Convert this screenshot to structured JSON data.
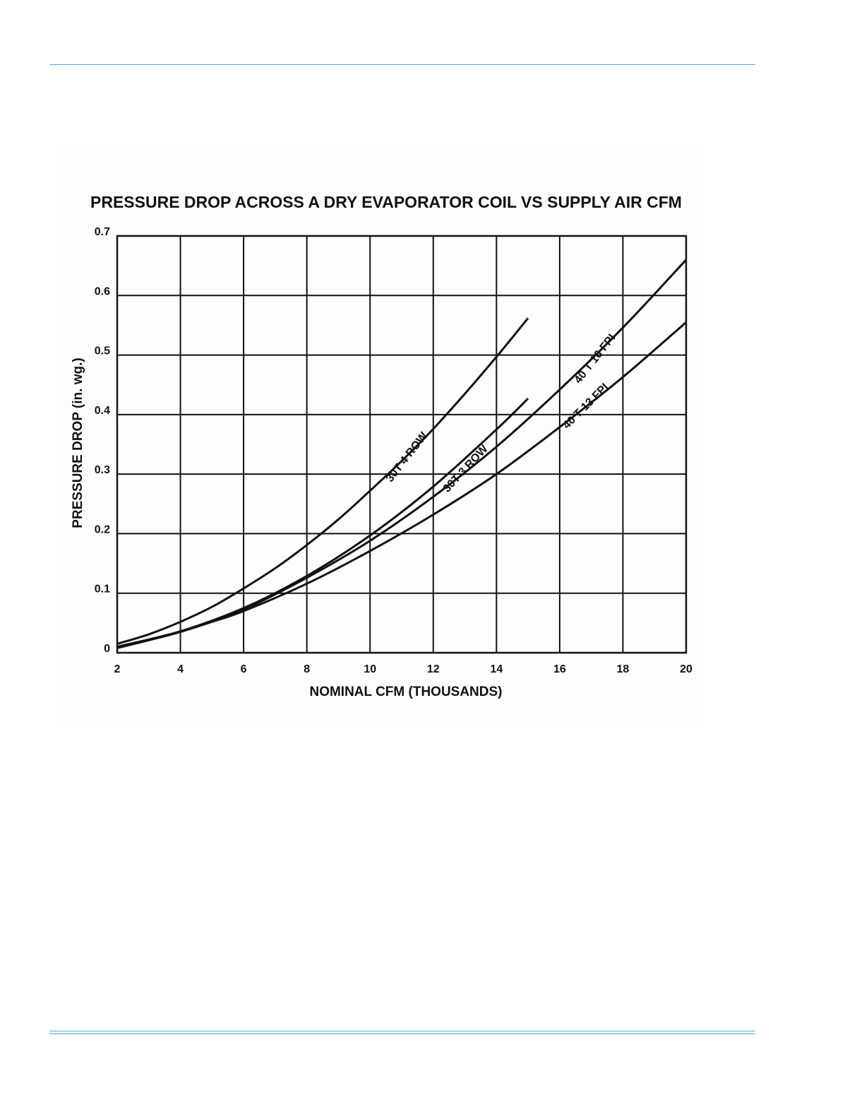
{
  "chart_data": {
    "type": "line",
    "title": "PRESSURE DROP ACROSS A DRY EVAPORATOR COIL VS SUPPLY AIR CFM",
    "xlabel": "NOMINAL CFM (THOUSANDS)",
    "ylabel": "PRESSURE DROP (in. wg.)",
    "xlim": [
      2,
      20
    ],
    "ylim": [
      0,
      0.7
    ],
    "x_ticks": [
      "2",
      "4",
      "6",
      "8",
      "10",
      "12",
      "14",
      "16",
      "18",
      "20"
    ],
    "y_ticks": [
      "0",
      "0.1",
      "0.2",
      "0.3",
      "0.4",
      "0.5",
      "0.6",
      "0.7"
    ],
    "grid": true,
    "series": [
      {
        "name": "30T 4 ROW",
        "x": [
          2,
          3,
          4,
          5,
          6,
          7,
          8,
          9,
          10,
          11,
          12,
          13,
          14,
          15
        ],
        "values": [
          0.015,
          0.031,
          0.052,
          0.077,
          0.108,
          0.142,
          0.181,
          0.224,
          0.272,
          0.322,
          0.376,
          0.435,
          0.497,
          0.562
        ]
      },
      {
        "name": "30T 3 ROW",
        "x": [
          2,
          4,
          6,
          8,
          10,
          12,
          14,
          15
        ],
        "values": [
          0.01,
          0.036,
          0.075,
          0.129,
          0.197,
          0.279,
          0.375,
          0.427
        ]
      },
      {
        "name": "40 T 16 FPI",
        "x": [
          2,
          4,
          6,
          8,
          10,
          12,
          14,
          16,
          18,
          20
        ],
        "values": [
          0.01,
          0.036,
          0.073,
          0.126,
          0.188,
          0.262,
          0.346,
          0.442,
          0.546,
          0.66
        ]
      },
      {
        "name": "40 T 13 FPI",
        "x": [
          2,
          3,
          4,
          5,
          6,
          8,
          10,
          12,
          14,
          16,
          18,
          20
        ],
        "values": [
          0.008,
          0.021,
          0.035,
          0.052,
          0.07,
          0.116,
          0.171,
          0.232,
          0.3,
          0.379,
          0.463,
          0.555
        ]
      }
    ]
  }
}
